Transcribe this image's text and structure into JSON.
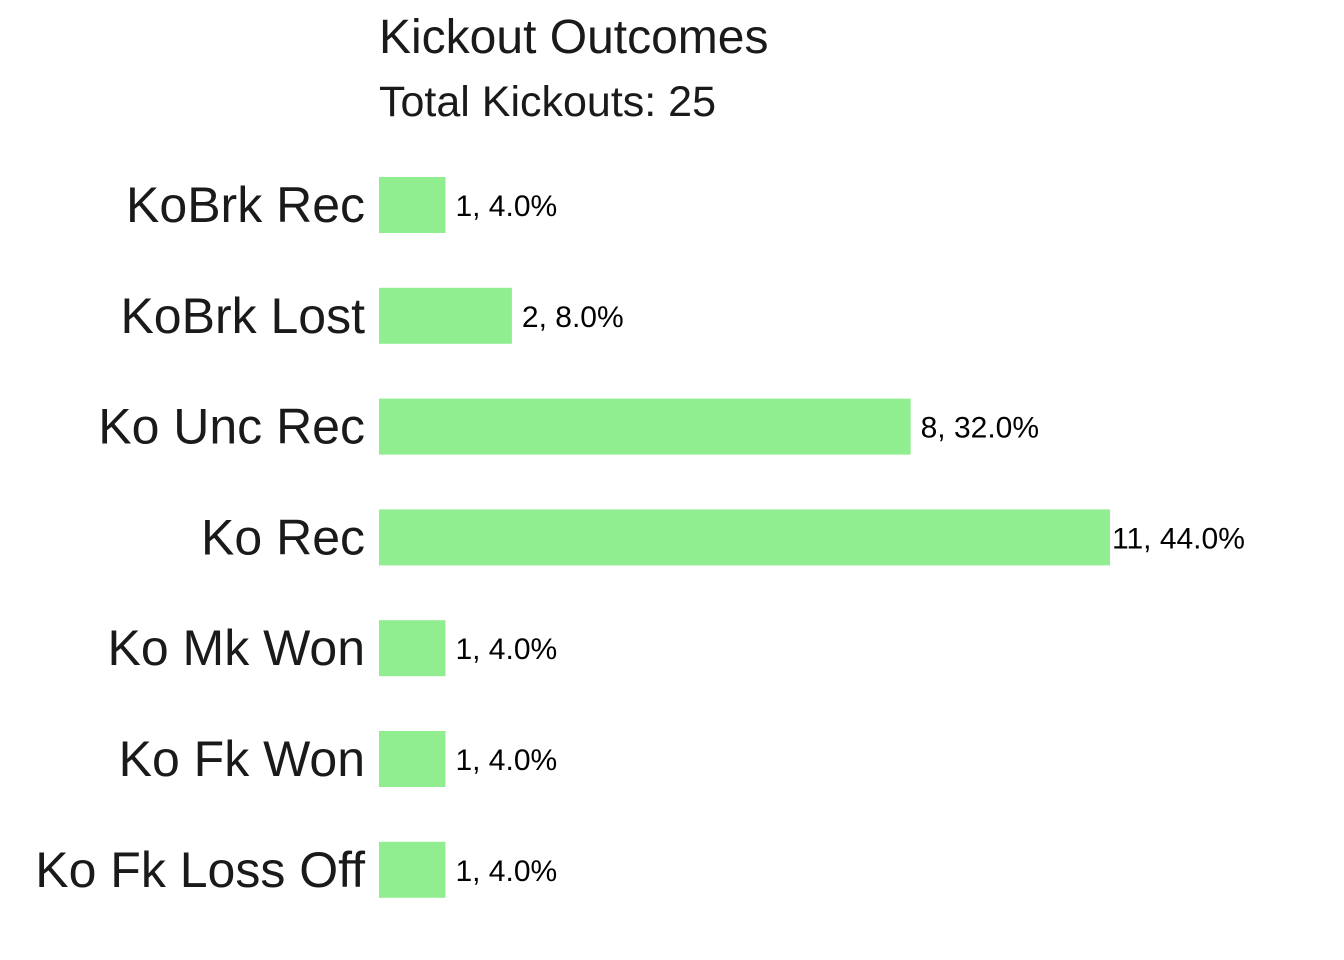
{
  "chart_data": {
    "type": "bar",
    "orientation": "horizontal",
    "title": "Kickout Outcomes",
    "subtitle": "Total Kickouts: 25",
    "categories": [
      "KoBrk Rec",
      "KoBrk Lost",
      "Ko Unc Rec",
      "Ko Rec",
      "Ko Mk Won",
      "Ko Fk Won",
      "Ko Fk Loss Off"
    ],
    "values": [
      1,
      2,
      8,
      11,
      1,
      1,
      1
    ],
    "data_labels": [
      "1, 4.0%",
      "2, 8.0%",
      "8, 32.0%",
      "11, 44.0%",
      "1, 4.0%",
      "1, 4.0%",
      "1, 4.0%"
    ],
    "bar_color": "#90EE90",
    "xlim": [
      0,
      11
    ],
    "grid": false,
    "legend": "none"
  }
}
